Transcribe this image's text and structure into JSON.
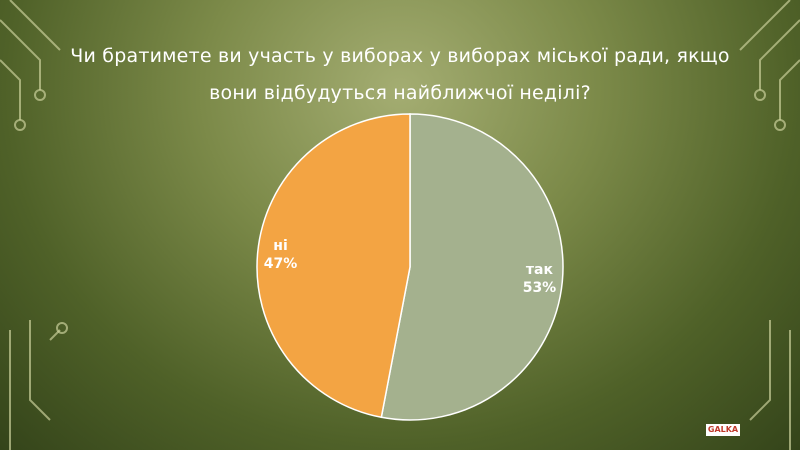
{
  "chart_data": {
    "type": "pie",
    "title": "Чи братимете ви участь у виборах у виборах міської ради, якщо вони відбудуться найближчої неділі?",
    "categories": [
      "так",
      "ні"
    ],
    "values": [
      53,
      47
    ],
    "value_labels": [
      "53%",
      "47%"
    ],
    "colors": [
      "#a4b18e",
      "#f3a443"
    ]
  },
  "logo": "GALKA"
}
